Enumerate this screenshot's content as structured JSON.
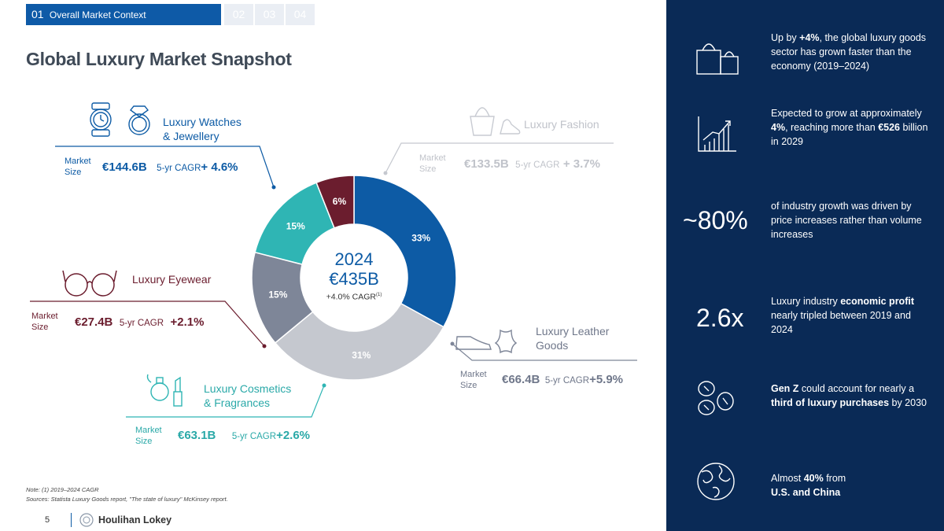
{
  "tabs": {
    "active_num": "01",
    "active_label": "Overall Market Context",
    "others": [
      "02",
      "03",
      "04"
    ]
  },
  "title": "Global Luxury Market Snapshot",
  "center": {
    "year": "2024",
    "total": "€435B",
    "cagr": "+4.0% CAGR",
    "cagr_sup": "(1)"
  },
  "segments": {
    "watches": {
      "label_line1": "Luxury Watches",
      "label_line2": "& Jewellery",
      "market_line1": "Market",
      "market_line2": "Size",
      "value": "€144.6B",
      "cagr_label": "5-yr CAGR",
      "cagr": "+ 4.6%"
    },
    "fashion": {
      "label": "Luxury Fashion",
      "market_line1": "Market",
      "market_line2": "Size",
      "value": "€133.5B",
      "cagr_label": "5-yr CAGR",
      "cagr": "+ 3.7%"
    },
    "eyewear": {
      "label": "Luxury Eyewear",
      "market_line1": "Market",
      "market_line2": "Size",
      "value": "€27.4B",
      "cagr_label": "5-yr CAGR",
      "cagr": "+2.1%"
    },
    "leather": {
      "label_line1": "Luxury Leather",
      "label_line2": "Goods",
      "market_line1": "Market",
      "market_line2": "Size",
      "value": "€66.4B",
      "cagr_label": "5-yr CAGR",
      "cagr": "+5.9%"
    },
    "cosmetics": {
      "label_line1": "Luxury Cosmetics",
      "label_line2": "& Fragrances",
      "market_line1": "Market",
      "market_line2": "Size",
      "value": "€63.1B",
      "cagr_label": "5-yr CAGR",
      "cagr": "+2.6%"
    }
  },
  "chart_data": {
    "type": "pie",
    "title": "Global Luxury Market Snapshot",
    "categories": [
      "Luxury Watches & Jewellery",
      "Luxury Fashion",
      "Luxury Leather Goods",
      "Luxury Cosmetics & Fragrances",
      "Luxury Eyewear"
    ],
    "values": [
      33,
      31,
      15,
      15,
      6
    ],
    "labels": [
      "33%",
      "31%",
      "15%",
      "15%",
      "6%"
    ],
    "colors": [
      "#0d5ba5",
      "#c5c8cf",
      "#7e8698",
      "#2fb5b4",
      "#6b1d2e"
    ]
  },
  "stats": {
    "s1": {
      "a": "Up by ",
      "b": "+4%",
      "c": ", the global luxury goods sector has grown faster than the economy (2019–2024)"
    },
    "s2": {
      "a": "Expected to grow at approximately ",
      "b": "4%",
      "c": ", reaching more than ",
      "d": "€526",
      "e": " billion in 2029"
    },
    "s3": {
      "big": "~80%",
      "text": "of industry growth was driven by price increases rather than volume increases"
    },
    "s4": {
      "big": "2.6x",
      "a": "Luxury industry ",
      "b": "economic profit",
      "c": " nearly tripled between 2019 and 2024"
    },
    "s5": {
      "a": "Gen Z",
      "b": " could account for nearly a ",
      "c": "third of luxury purchases",
      "d": " by 2030"
    },
    "s6": {
      "a": "Almost ",
      "b": "40%",
      "c": " from",
      "d": "U.S. and China"
    }
  },
  "notes": {
    "line1": "Note: (1) 2019–2024 CAGR",
    "line2": "Sources: Statista Luxury Goods report, \"The state of luxury\" McKinsey report."
  },
  "footer": {
    "page": "5",
    "brand": "Houlihan Lokey"
  },
  "colors": {
    "navy": "#0a2a56",
    "blue": "#0d5ba5",
    "grey": "#c5c8cf",
    "slate": "#7e8698",
    "teal": "#2fb5b4",
    "burgundy": "#6b1d2e"
  }
}
